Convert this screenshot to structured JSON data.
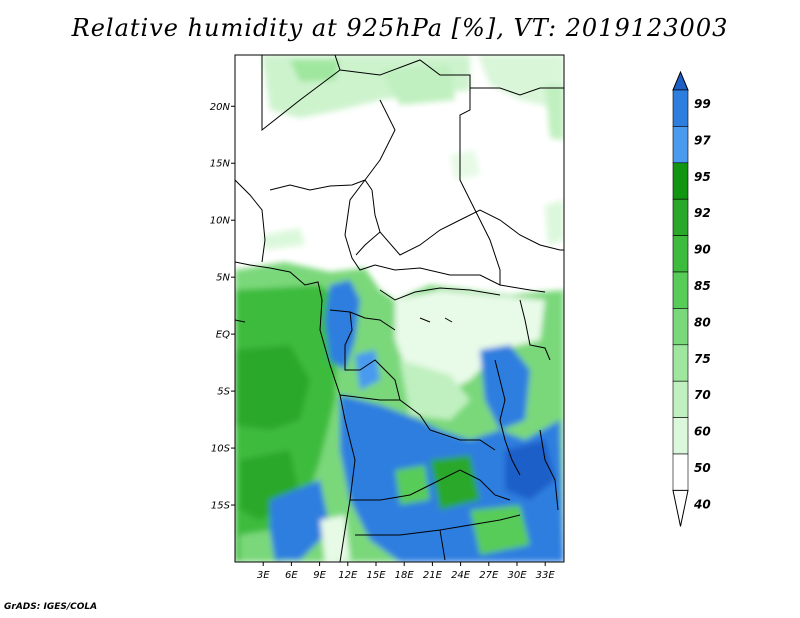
{
  "title": "Relative humidity at 925hPa [%], VT: 2019123003",
  "credit": "GrADS: IGES/COLA",
  "map": {
    "lat_range": [
      -20,
      24.5
    ],
    "lon_range": [
      0,
      35
    ],
    "lat_ticks": [
      {
        "value": 20,
        "label": "20N"
      },
      {
        "value": 15,
        "label": "15N"
      },
      {
        "value": 10,
        "label": "10N"
      },
      {
        "value": 5,
        "label": "5N"
      },
      {
        "value": 0,
        "label": "EQ"
      },
      {
        "value": -5,
        "label": "5S"
      },
      {
        "value": -10,
        "label": "10S"
      },
      {
        "value": -15,
        "label": "15S"
      }
    ],
    "lon_ticks": [
      {
        "value": 3,
        "label": "3E"
      },
      {
        "value": 6,
        "label": "6E"
      },
      {
        "value": 9,
        "label": "9E"
      },
      {
        "value": 12,
        "label": "12E"
      },
      {
        "value": 15,
        "label": "15E"
      },
      {
        "value": 18,
        "label": "18E"
      },
      {
        "value": 21,
        "label": "21E"
      },
      {
        "value": 24,
        "label": "24E"
      },
      {
        "value": 27,
        "label": "27E"
      },
      {
        "value": 30,
        "label": "30E"
      },
      {
        "value": 33,
        "label": "33E"
      }
    ]
  },
  "colorbar": {
    "levels": [
      "99",
      "97",
      "95",
      "92",
      "90",
      "85",
      "80",
      "75",
      "70",
      "60",
      "50",
      "40"
    ],
    "colors": [
      "#1f5fc8",
      "#2e7ee0",
      "#4a9af0",
      "#129612",
      "#2aa82a",
      "#3dbb3d",
      "#58cc58",
      "#7ad87a",
      "#9fe69f",
      "#c0f0c0",
      "#dcf8dc",
      "#ffffff"
    ]
  }
}
